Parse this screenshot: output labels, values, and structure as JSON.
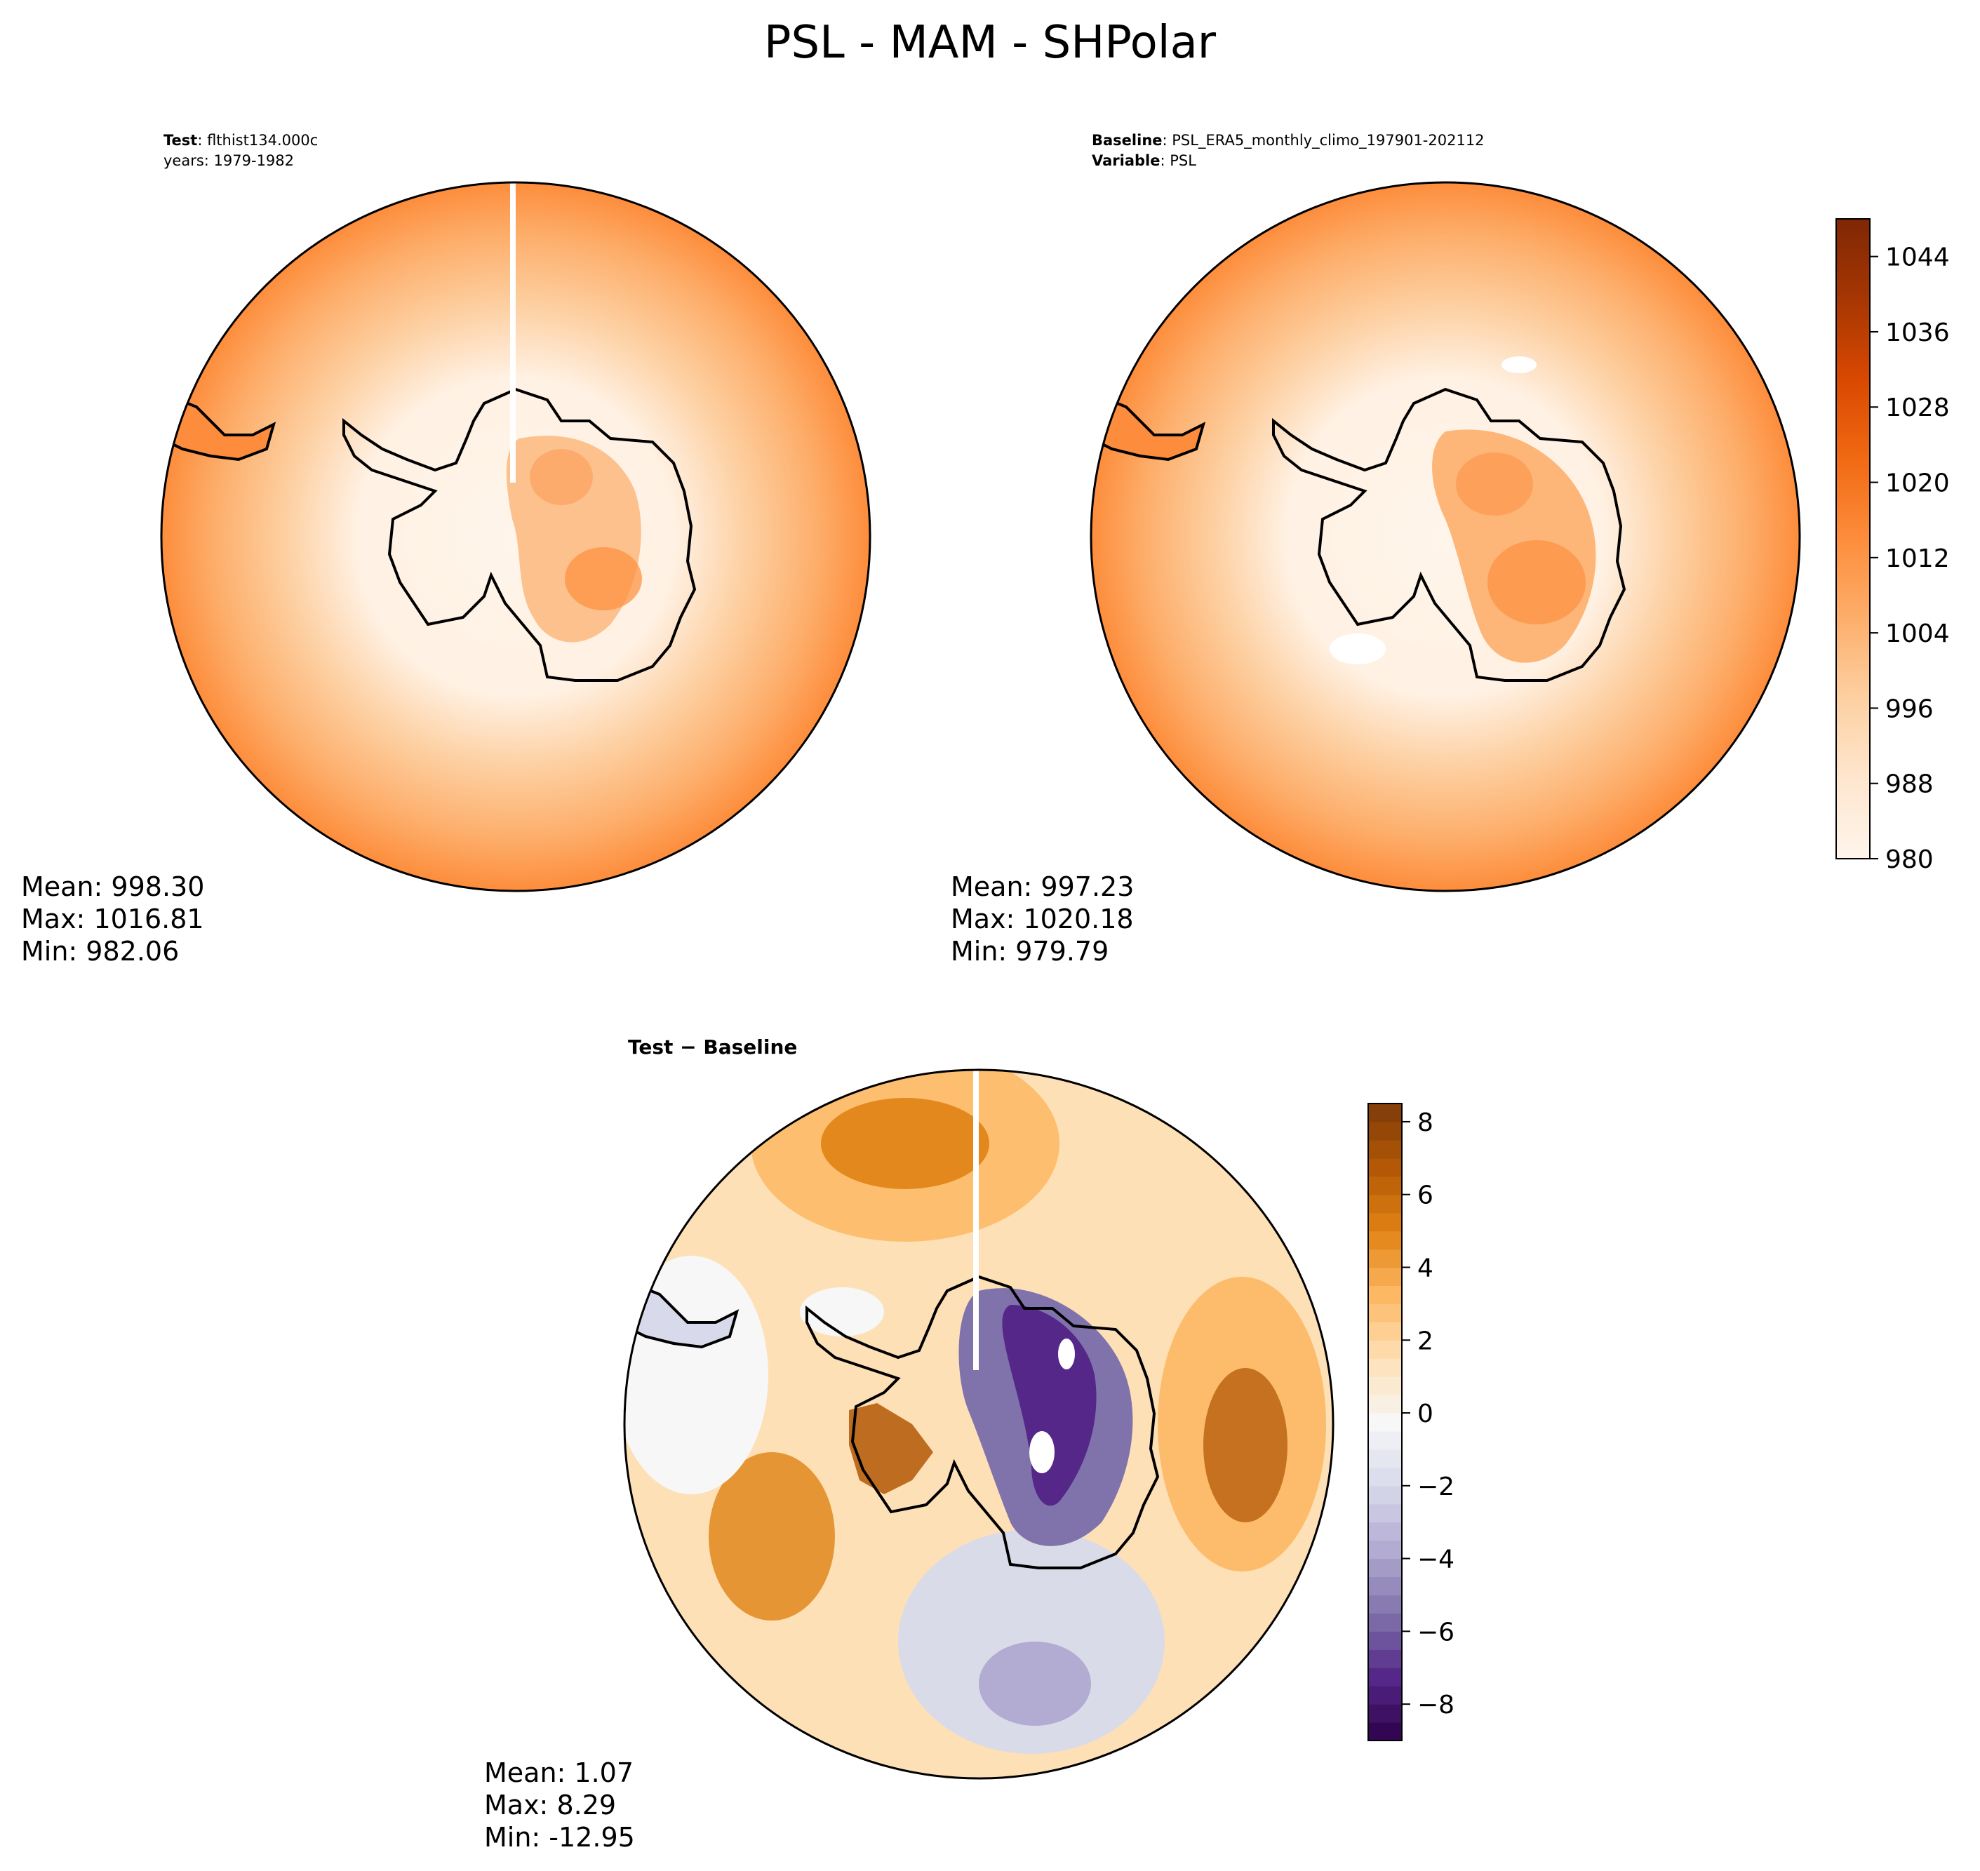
{
  "chart_data": {
    "type": "heatmap",
    "title": "PSL - MAM - SHPolar",
    "panels": [
      {
        "id": "test",
        "header": [
          {
            "bold": "Test",
            "rest": ": flthist134.000c"
          },
          {
            "bold": "",
            "rest": "years: 1979-1982"
          }
        ],
        "stats": {
          "mean": "Mean: 998.30",
          "max": "Max: 1016.81",
          "min": "Min: 982.06"
        },
        "values": {
          "mean": 998.3,
          "max": 1016.81,
          "min": 982.06
        }
      },
      {
        "id": "baseline",
        "header": [
          {
            "bold": "Baseline",
            "rest": ": PSL_ERA5_monthly_climo_197901-202112"
          },
          {
            "bold": "Variable",
            "rest": ": PSL"
          }
        ],
        "stats": {
          "mean": "Mean: 997.23",
          "max": "Max: 1020.18",
          "min": "Min: 979.79"
        },
        "values": {
          "mean": 997.23,
          "max": 1020.18,
          "min": 979.79
        }
      },
      {
        "id": "diff",
        "header": [
          {
            "bold": "Test − Baseline",
            "rest": ""
          }
        ],
        "stats": {
          "mean": "Mean:  1.07",
          "max": "Max:  8.29",
          "min": "Min: -12.95"
        },
        "values": {
          "mean": 1.07,
          "max": 8.29,
          "min": -12.95
        }
      }
    ],
    "colorbars": [
      {
        "id": "psl",
        "range": [
          980,
          1048
        ],
        "step": 4,
        "ticks": [
          980,
          988,
          996,
          1004,
          1012,
          1020,
          1028,
          1036,
          1044
        ],
        "tick_labels": [
          "980",
          "988",
          "996",
          "1004",
          "1012",
          "1020",
          "1028",
          "1036",
          "1044"
        ],
        "colors": [
          "#fff5eb",
          "#fee6ce",
          "#fdd0a2",
          "#fdae6b",
          "#fd8d3c",
          "#f16913",
          "#d94801",
          "#a63603",
          "#7f2704"
        ]
      },
      {
        "id": "diff",
        "range": [
          -9,
          8.5
        ],
        "step": 0.5,
        "ticks": [
          -8,
          -6,
          -4,
          -2,
          0,
          2,
          4,
          6,
          8
        ],
        "tick_labels": [
          "−8",
          "−6",
          "−4",
          "−2",
          "0",
          "2",
          "4",
          "6",
          "8"
        ],
        "colors": [
          "#2d004b",
          "#542788",
          "#8073ac",
          "#b2abd2",
          "#d8daeb",
          "#f7f7f7",
          "#fee0b6",
          "#fdb863",
          "#e08214",
          "#b35806",
          "#7f3b08"
        ]
      }
    ],
    "land_color": "#000000"
  }
}
